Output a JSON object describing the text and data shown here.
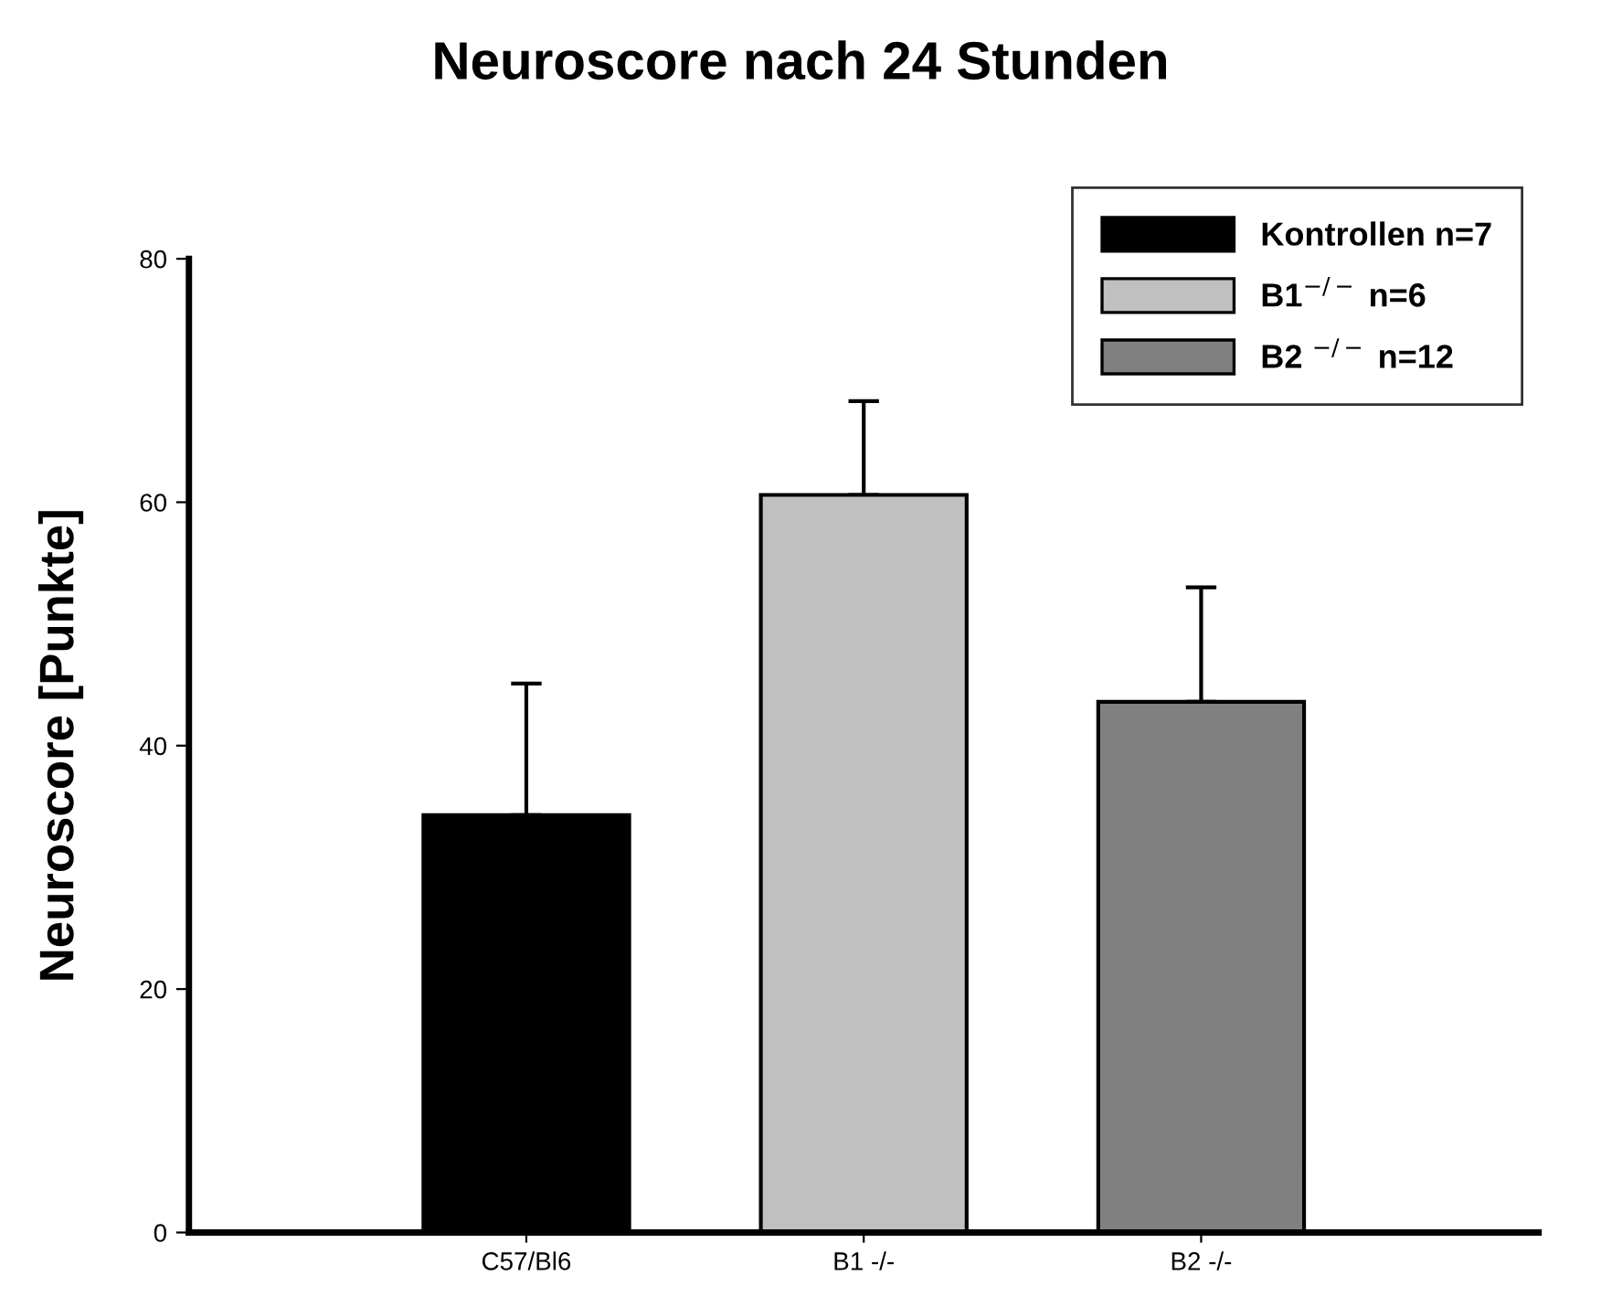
{
  "chart_data": {
    "type": "bar",
    "title": "Neuroscore nach 24 Stunden",
    "ylabel": "Neuroscore [Punkte]",
    "categories": [
      "C57/Bl6",
      "B1 -/-",
      "B2 -/-"
    ],
    "series": [
      {
        "name": "Kontrollen n=7",
        "color": "#000000",
        "values": [
          34.3,
          null,
          null
        ],
        "errors": [
          [
            34.3,
            45.1
          ],
          null,
          null
        ]
      },
      {
        "name": "B1$^{−/−}$ n=6",
        "color": "#c0c0c0",
        "values": [
          null,
          60.6,
          null
        ],
        "errors": [
          null,
          [
            60.6,
            68.3
          ],
          null
        ]
      },
      {
        "name": "B2 $^{−/−}$ n=12",
        "color": "#808080",
        "values": [
          null,
          null,
          43.6
        ],
        "errors": [
          null,
          null,
          [
            43.6,
            53.0
          ]
        ]
      }
    ],
    "ylim": [
      0,
      80
    ],
    "yticks": [
      0,
      20,
      40,
      60,
      80
    ],
    "grid": false,
    "legend": "top right"
  }
}
